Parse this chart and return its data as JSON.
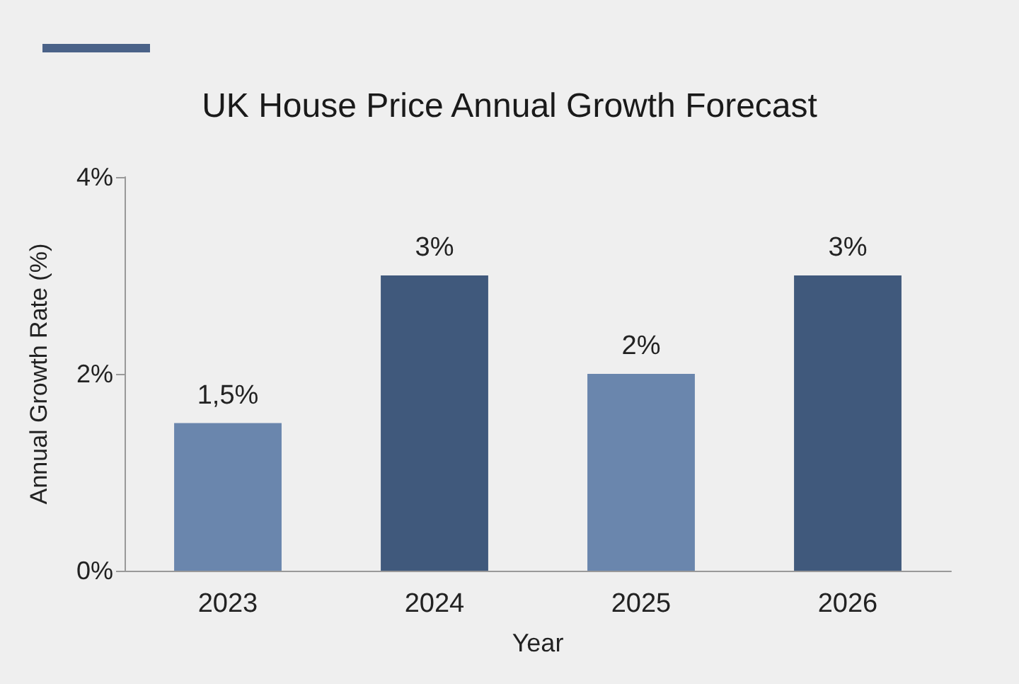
{
  "chart_data": {
    "type": "bar",
    "title": "UK House Price Annual Growth Forecast",
    "xlabel": "Year",
    "ylabel": "Annual Growth Rate (%)",
    "categories": [
      "2023",
      "2024",
      "2025",
      "2026"
    ],
    "values": [
      1.5,
      3,
      2,
      3
    ],
    "colors": [
      "#6a86ad",
      "#40597c",
      "#6a86ad",
      "#40597c"
    ],
    "value_labels": [
      "1,5%",
      "3%",
      "2%",
      "3%"
    ],
    "ylim": [
      0,
      4
    ],
    "yticks": [
      {
        "value": 0,
        "label": "0%"
      },
      {
        "value": 2,
        "label": "2%"
      },
      {
        "value": 4,
        "label": "4%"
      }
    ],
    "grid": false
  }
}
